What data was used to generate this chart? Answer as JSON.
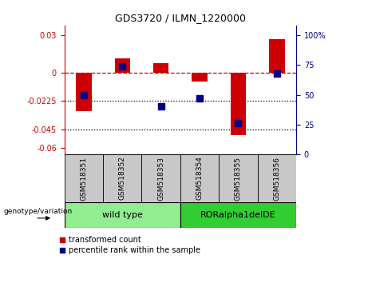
{
  "title": "GDS3720 / ILMN_1220000",
  "samples": [
    "GSM518351",
    "GSM518352",
    "GSM518353",
    "GSM518354",
    "GSM518355",
    "GSM518356"
  ],
  "red_bars": [
    -0.0305,
    0.012,
    0.008,
    -0.007,
    -0.05,
    0.027
  ],
  "blue_dots": [
    50,
    74,
    40,
    47,
    26,
    68
  ],
  "ylim_left": [
    -0.065,
    0.038
  ],
  "ylim_right": [
    0,
    108.3
  ],
  "yticks_left": [
    0.03,
    0,
    -0.0225,
    -0.045,
    -0.06
  ],
  "ytick_labels_left": [
    "0.03",
    "0",
    "-0.0225",
    "-0.045",
    "-0.06"
  ],
  "yticks_right": [
    100,
    75,
    50,
    25,
    0
  ],
  "ytick_labels_right": [
    "100%",
    "75",
    "50",
    "25",
    "0"
  ],
  "groups": [
    {
      "label": "wild type",
      "start": 0,
      "end": 3,
      "color": "#90EE90"
    },
    {
      "label": "RORalpha1delDE",
      "start": 3,
      "end": 6,
      "color": "#32CD32"
    }
  ],
  "bar_color": "#CC0000",
  "dot_color": "#00008B",
  "bar_width": 0.4,
  "dot_size": 35,
  "background_color": "#ffffff",
  "plot_bg_color": "#ffffff",
  "genotype_label": "genotype/variation",
  "legend_red": "transformed count",
  "legend_blue": "percentile rank within the sample",
  "red_axis_color": "#CC0000",
  "blue_axis_color": "#00008B",
  "black_line_color": "#000000",
  "sample_box_color": "#C8C8C8"
}
